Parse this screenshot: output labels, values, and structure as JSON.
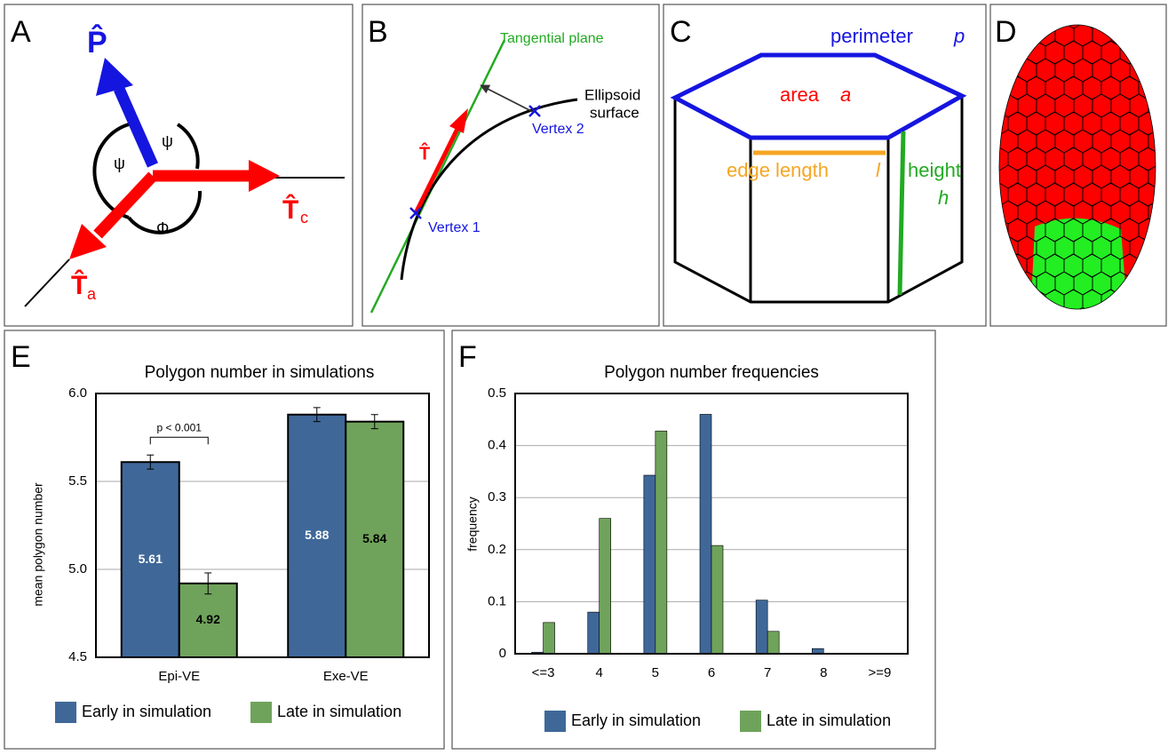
{
  "panel_letters": [
    "A",
    "B",
    "C",
    "D",
    "E",
    "F"
  ],
  "diagram_a": {
    "p": "P̂",
    "t_c": "T̂",
    "c": "c",
    "t_a": "T̂",
    "a": "a",
    "psi_left": "ψ",
    "psi_right": "ψ",
    "phi": "Φ"
  },
  "diagram_b": {
    "plane": "Tangential plane",
    "surface_1": "Ellipsoid",
    "surface_2": "surface",
    "vertex_1": "Vertex 1",
    "vertex_2": "Vertex 2",
    "t": "T̂"
  },
  "diagram_c": {
    "perimeter": "perimeter",
    "p": "p",
    "area": "area",
    "a": "a",
    "edge": "edge length",
    "l": "l",
    "height": "height",
    "h": "h"
  },
  "chart_data": [
    {
      "type": "bar",
      "title": "Polygon number in simulations",
      "y_label": "mean polygon number",
      "categories": [
        "Epi-VE",
        "Exe-VE"
      ],
      "series": [
        {
          "name": "Early in simulation",
          "color": "#3f6899",
          "label_color": "#ffffff",
          "values": [
            5.61,
            5.88
          ],
          "errors": [
            0.04,
            0.04
          ]
        },
        {
          "name": "Late in simulation",
          "color": "#6fa35b",
          "label_color": "#000000",
          "values": [
            4.92,
            5.84
          ],
          "errors": [
            0.06,
            0.04
          ]
        }
      ],
      "ylim": [
        4.5,
        6.0
      ],
      "yticks": [
        {
          "value": 4.5,
          "label": "4.5"
        },
        {
          "value": 5.0,
          "label": "5.0"
        },
        {
          "value": 5.5,
          "label": "5.5"
        },
        {
          "value": 6.0,
          "label": "6.0"
        }
      ],
      "grid": true,
      "annotation": "p < 0.001",
      "show_value_labels": true
    },
    {
      "type": "bar",
      "title": "Polygon number frequencies",
      "y_label": "frequency",
      "categories": [
        "<=3",
        "4",
        "5",
        "6",
        "7",
        "8",
        ">=9"
      ],
      "series": [
        {
          "name": "Early in simulation",
          "color": "#3f6899",
          "values": [
            0.003,
            0.08,
            0.343,
            0.46,
            0.103,
            0.01,
            0
          ]
        },
        {
          "name": "Late in simulation",
          "color": "#6fa35b",
          "values": [
            0.06,
            0.26,
            0.428,
            0.208,
            0.043,
            0,
            0
          ]
        }
      ],
      "ylim": [
        0,
        0.5
      ],
      "yticks": [
        0,
        0.1,
        0.2,
        0.3,
        0.4,
        0.5
      ],
      "grid": true,
      "show_value_labels": false
    }
  ]
}
